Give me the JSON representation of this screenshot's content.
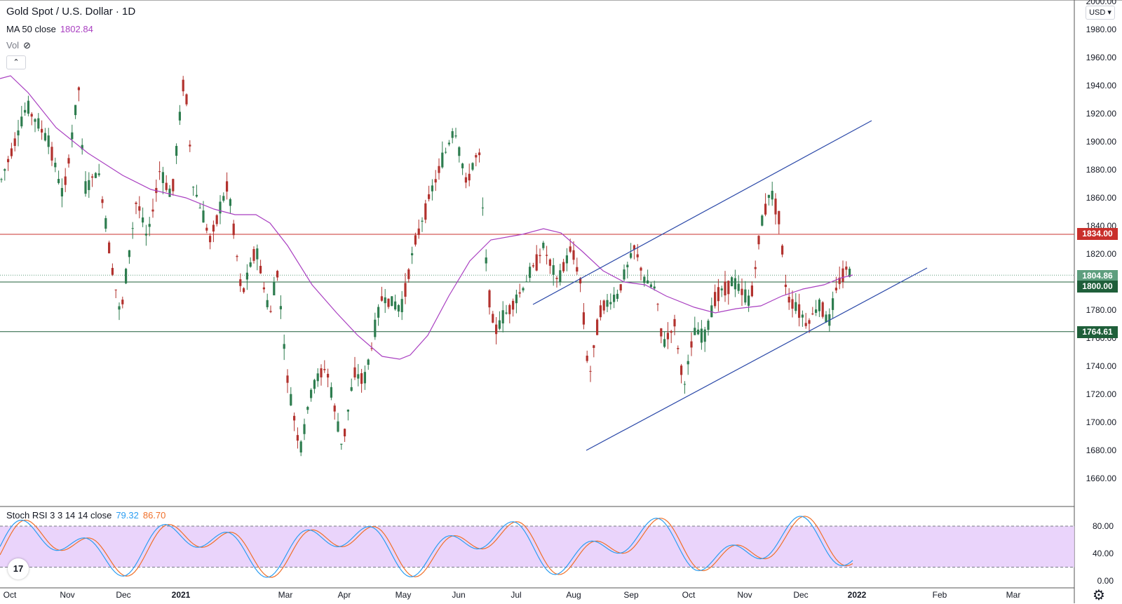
{
  "header": {
    "title": "Gold Spot / U.S. Dollar · 1D",
    "ma_label": "MA 50 close",
    "ma_value": "1802.84",
    "vol_label": "Vol",
    "vol_icon": "eye-crossed-icon",
    "collapse_icon": "chevron-up-icon"
  },
  "currency": "USD",
  "price_axis": {
    "ticks": [
      "2000.00",
      "1980.00",
      "1960.00",
      "1940.00",
      "1920.00",
      "1900.00",
      "1880.00",
      "1860.00",
      "1840.00",
      "1820.00",
      "1800.00",
      "1780.00",
      "1760.00",
      "1740.00",
      "1720.00",
      "1700.00",
      "1680.00",
      "1660.00"
    ]
  },
  "price_tags": {
    "resistance": "1834.00",
    "last": "1804.86",
    "level_1800": "1800.00",
    "support": "1764.61"
  },
  "stoch": {
    "label": "Stoch RSI 3 3 14 14 close",
    "k_value": "79.32",
    "d_value": "86.70",
    "ticks": [
      "80.00",
      "40.00",
      "0.00"
    ]
  },
  "time_axis": [
    "Oct",
    "Nov",
    "Dec",
    "2021",
    "Mar",
    "Apr",
    "May",
    "Jun",
    "Jul",
    "Aug",
    "Sep",
    "Oct",
    "Nov",
    "Dec",
    "2022",
    "Feb",
    "Mar"
  ],
  "colors": {
    "up": "#2e7d4f",
    "down": "#b2322e",
    "ma": "#a93fc1",
    "resistance": "#c9302c",
    "support": "#1f5f3a",
    "channel": "#2a48a8",
    "stoch_k": "#2c9ef2",
    "stoch_d": "#f0702a",
    "stoch_band": "#e6ccfa",
    "last_tag": "#5e9e7e"
  },
  "icons": {
    "logo": "tradingview-logo",
    "settings": "gear-icon"
  },
  "chart_data": {
    "type": "candlestick",
    "symbol": "Gold Spot / U.S. Dollar",
    "timeframe": "1D",
    "ylim": [
      1650,
      2000
    ],
    "horizontal_levels": [
      1834.0,
      1800.0,
      1764.61
    ],
    "last_price": 1804.86,
    "ma50_last": 1802.84,
    "price_path": [
      {
        "x": 0,
        "y": 1870
      },
      {
        "x": 38,
        "y": 1925
      },
      {
        "x": 70,
        "y": 1900
      },
      {
        "x": 90,
        "y": 1860
      },
      {
        "x": 113,
        "y": 1940
      },
      {
        "x": 120,
        "y": 1865
      },
      {
        "x": 140,
        "y": 1880
      },
      {
        "x": 160,
        "y": 1810
      },
      {
        "x": 172,
        "y": 1775
      },
      {
        "x": 195,
        "y": 1860
      },
      {
        "x": 210,
        "y": 1830
      },
      {
        "x": 228,
        "y": 1880
      },
      {
        "x": 245,
        "y": 1860
      },
      {
        "x": 263,
        "y": 1950
      },
      {
        "x": 275,
        "y": 1870
      },
      {
        "x": 300,
        "y": 1830
      },
      {
        "x": 325,
        "y": 1870
      },
      {
        "x": 345,
        "y": 1790
      },
      {
        "x": 365,
        "y": 1825
      },
      {
        "x": 385,
        "y": 1775
      },
      {
        "x": 395,
        "y": 1810
      },
      {
        "x": 410,
        "y": 1730
      },
      {
        "x": 428,
        "y": 1680
      },
      {
        "x": 445,
        "y": 1725
      },
      {
        "x": 465,
        "y": 1740
      },
      {
        "x": 488,
        "y": 1682
      },
      {
        "x": 505,
        "y": 1735
      },
      {
        "x": 520,
        "y": 1730
      },
      {
        "x": 545,
        "y": 1790
      },
      {
        "x": 572,
        "y": 1780
      },
      {
        "x": 590,
        "y": 1825
      },
      {
        "x": 612,
        "y": 1860
      },
      {
        "x": 630,
        "y": 1885
      },
      {
        "x": 648,
        "y": 1910
      },
      {
        "x": 665,
        "y": 1870
      },
      {
        "x": 683,
        "y": 1895
      },
      {
        "x": 695,
        "y": 1800
      },
      {
        "x": 705,
        "y": 1765
      },
      {
        "x": 725,
        "y": 1780
      },
      {
        "x": 745,
        "y": 1795
      },
      {
        "x": 775,
        "y": 1825
      },
      {
        "x": 795,
        "y": 1800
      },
      {
        "x": 815,
        "y": 1825
      },
      {
        "x": 828,
        "y": 1800
      },
      {
        "x": 840,
        "y": 1730
      },
      {
        "x": 855,
        "y": 1780
      },
      {
        "x": 880,
        "y": 1790
      },
      {
        "x": 905,
        "y": 1825
      },
      {
        "x": 920,
        "y": 1800
      },
      {
        "x": 935,
        "y": 1795
      },
      {
        "x": 945,
        "y": 1755
      },
      {
        "x": 962,
        "y": 1770
      },
      {
        "x": 975,
        "y": 1725
      },
      {
        "x": 990,
        "y": 1765
      },
      {
        "x": 1005,
        "y": 1760
      },
      {
        "x": 1020,
        "y": 1790
      },
      {
        "x": 1045,
        "y": 1800
      },
      {
        "x": 1070,
        "y": 1785
      },
      {
        "x": 1085,
        "y": 1840
      },
      {
        "x": 1098,
        "y": 1865
      },
      {
        "x": 1110,
        "y": 1850
      },
      {
        "x": 1122,
        "y": 1790
      },
      {
        "x": 1140,
        "y": 1780
      },
      {
        "x": 1150,
        "y": 1770
      },
      {
        "x": 1170,
        "y": 1785
      },
      {
        "x": 1182,
        "y": 1770
      },
      {
        "x": 1195,
        "y": 1800
      },
      {
        "x": 1208,
        "y": 1810
      },
      {
        "x": 1216,
        "y": 1805
      }
    ],
    "ma50_path": [
      {
        "x": 0,
        "y": 1945
      },
      {
        "x": 15,
        "y": 1947
      },
      {
        "x": 40,
        "y": 1935
      },
      {
        "x": 80,
        "y": 1910
      },
      {
        "x": 125,
        "y": 1892
      },
      {
        "x": 175,
        "y": 1876
      },
      {
        "x": 215,
        "y": 1866
      },
      {
        "x": 265,
        "y": 1860
      },
      {
        "x": 305,
        "y": 1852
      },
      {
        "x": 335,
        "y": 1848
      },
      {
        "x": 365,
        "y": 1848
      },
      {
        "x": 385,
        "y": 1842
      },
      {
        "x": 410,
        "y": 1826
      },
      {
        "x": 445,
        "y": 1798
      },
      {
        "x": 480,
        "y": 1778
      },
      {
        "x": 510,
        "y": 1762
      },
      {
        "x": 545,
        "y": 1747
      },
      {
        "x": 570,
        "y": 1745
      },
      {
        "x": 585,
        "y": 1748
      },
      {
        "x": 610,
        "y": 1762
      },
      {
        "x": 640,
        "y": 1790
      },
      {
        "x": 670,
        "y": 1815
      },
      {
        "x": 700,
        "y": 1830
      },
      {
        "x": 745,
        "y": 1834
      },
      {
        "x": 775,
        "y": 1838
      },
      {
        "x": 800,
        "y": 1835
      },
      {
        "x": 830,
        "y": 1822
      },
      {
        "x": 860,
        "y": 1808
      },
      {
        "x": 890,
        "y": 1800
      },
      {
        "x": 920,
        "y": 1798
      },
      {
        "x": 950,
        "y": 1790
      },
      {
        "x": 990,
        "y": 1782
      },
      {
        "x": 1020,
        "y": 1778
      },
      {
        "x": 1050,
        "y": 1781
      },
      {
        "x": 1085,
        "y": 1783
      },
      {
        "x": 1115,
        "y": 1790
      },
      {
        "x": 1145,
        "y": 1795
      },
      {
        "x": 1175,
        "y": 1798
      },
      {
        "x": 1200,
        "y": 1803
      },
      {
        "x": 1216,
        "y": 1805
      }
    ],
    "channel_lines": [
      {
        "x1": 760,
        "y1": 1784,
        "x2": 1243,
        "y2": 1915
      },
      {
        "x1": 836,
        "y1": 1680,
        "x2": 1322,
        "y2": 1810
      }
    ],
    "stoch_rsi": {
      "k": 79.32,
      "d": 86.7,
      "upper_band": 80,
      "lower_band": 20
    }
  }
}
